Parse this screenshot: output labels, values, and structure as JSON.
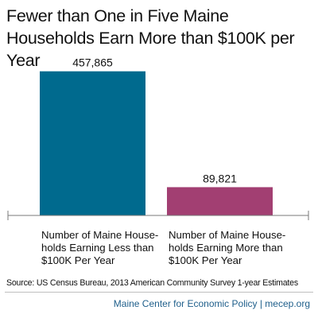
{
  "chart_data": {
    "type": "bar",
    "title": "Fewer than One in Five Maine Households Earn More than $100K per Year",
    "categories": [
      "Number of Maine Households Earning Less than $100K Per Year",
      "Number of Maine Households Earning More than $100K Per Year"
    ],
    "category_lines": [
      [
        "Number of Maine House-",
        "holds Earning Less than",
        "$100K Per Year"
      ],
      [
        "Number of Maine House-",
        "holds Earning More than",
        "$100K Per Year"
      ]
    ],
    "values": [
      457865,
      89821
    ],
    "value_labels": [
      "457,865",
      "89,821"
    ],
    "colors": [
      "#006A8E",
      "#A23F72"
    ],
    "xlabel": "",
    "ylabel": "",
    "ylim": [
      0,
      500000
    ],
    "grid": false,
    "legend": "none"
  },
  "source": "Source: US Census Bureau, 2013 American Community Survey 1-year Estimates",
  "credit": "Maine Center for Economic Policy | mecep.org"
}
